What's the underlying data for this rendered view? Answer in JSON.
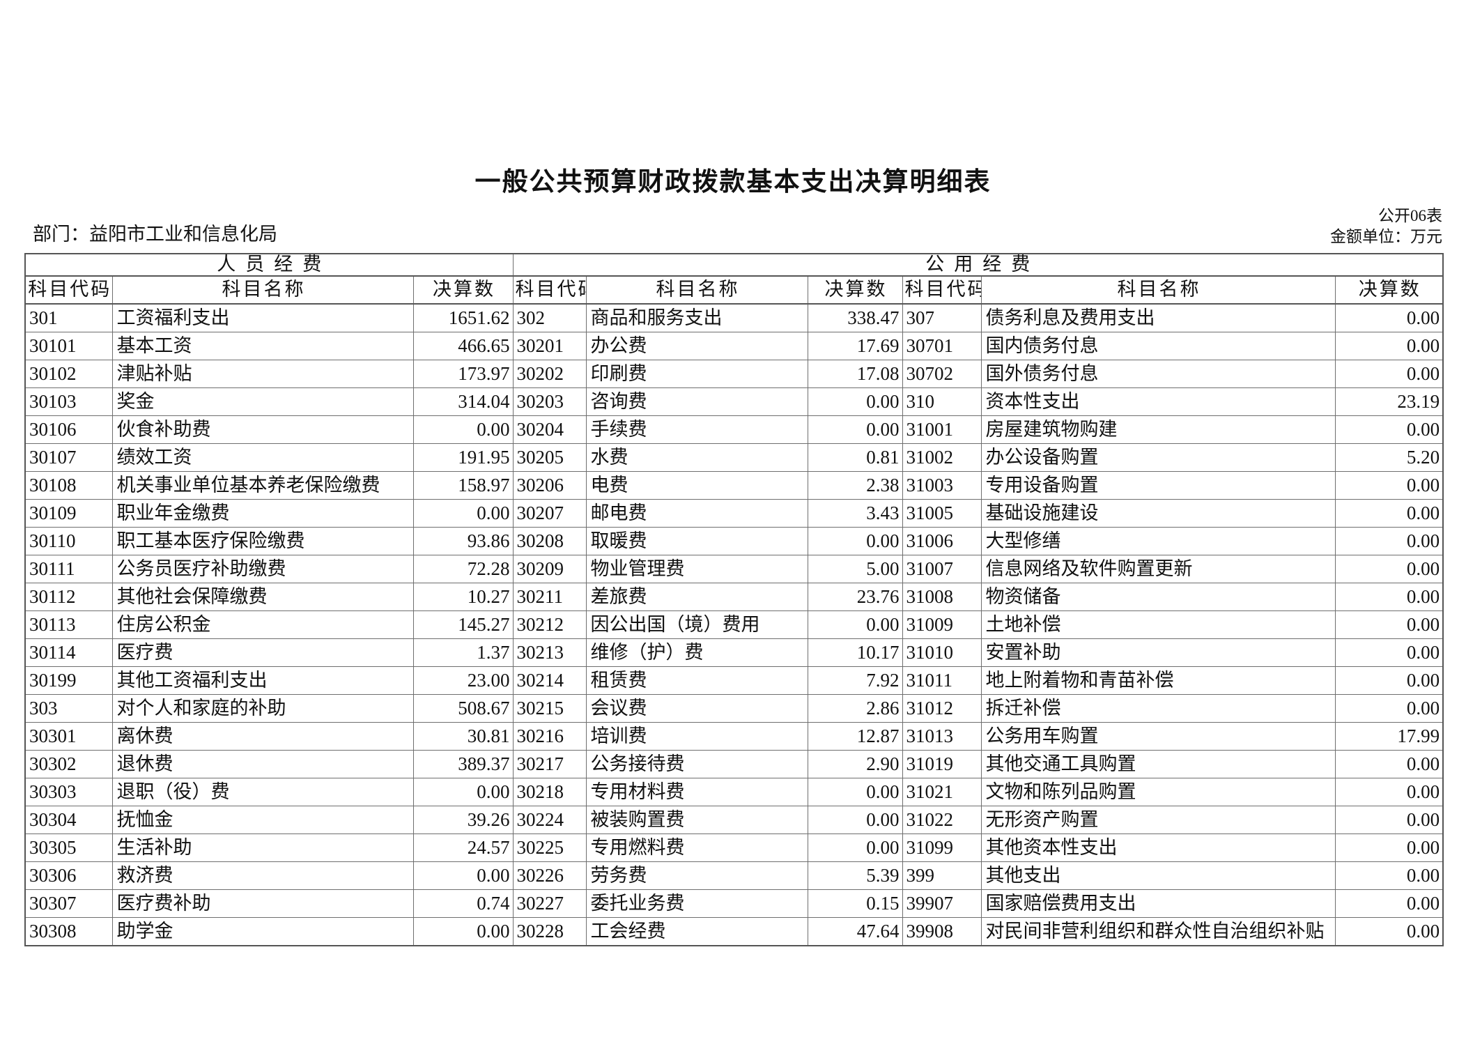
{
  "page": {
    "title": "一般公共预算财政拨款基本支出决算明细表",
    "sheet_label": "公开06表",
    "department_label": "部门：益阳市工业和信息化局",
    "unit_label": "金额单位：万元"
  },
  "table": {
    "group_headers": [
      "人员经费",
      "公用经费"
    ],
    "column_headers": [
      "科目代码",
      "科目名称",
      "决算数"
    ],
    "rows": [
      [
        [
          "301",
          "工资福利支出",
          "1651.62"
        ],
        [
          "302",
          "商品和服务支出",
          "338.47"
        ],
        [
          "307",
          "债务利息及费用支出",
          "0.00"
        ]
      ],
      [
        [
          "30101",
          "基本工资",
          "466.65"
        ],
        [
          "30201",
          "办公费",
          "17.69"
        ],
        [
          "30701",
          "国内债务付息",
          "0.00"
        ]
      ],
      [
        [
          "30102",
          "津贴补贴",
          "173.97"
        ],
        [
          "30202",
          "印刷费",
          "17.08"
        ],
        [
          "30702",
          "国外债务付息",
          "0.00"
        ]
      ],
      [
        [
          "30103",
          "奖金",
          "314.04"
        ],
        [
          "30203",
          "咨询费",
          "0.00"
        ],
        [
          "310",
          "资本性支出",
          "23.19"
        ]
      ],
      [
        [
          "30106",
          "伙食补助费",
          "0.00"
        ],
        [
          "30204",
          "手续费",
          "0.00"
        ],
        [
          "31001",
          "房屋建筑物购建",
          "0.00"
        ]
      ],
      [
        [
          "30107",
          "绩效工资",
          "191.95"
        ],
        [
          "30205",
          "水费",
          "0.81"
        ],
        [
          "31002",
          "办公设备购置",
          "5.20"
        ]
      ],
      [
        [
          "30108",
          "机关事业单位基本养老保险缴费",
          "158.97"
        ],
        [
          "30206",
          "电费",
          "2.38"
        ],
        [
          "31003",
          "专用设备购置",
          "0.00"
        ]
      ],
      [
        [
          "30109",
          "职业年金缴费",
          "0.00"
        ],
        [
          "30207",
          "邮电费",
          "3.43"
        ],
        [
          "31005",
          "基础设施建设",
          "0.00"
        ]
      ],
      [
        [
          "30110",
          "职工基本医疗保险缴费",
          "93.86"
        ],
        [
          "30208",
          "取暖费",
          "0.00"
        ],
        [
          "31006",
          "大型修缮",
          "0.00"
        ]
      ],
      [
        [
          "30111",
          "公务员医疗补助缴费",
          "72.28"
        ],
        [
          "30209",
          "物业管理费",
          "5.00"
        ],
        [
          "31007",
          "信息网络及软件购置更新",
          "0.00"
        ]
      ],
      [
        [
          "30112",
          "其他社会保障缴费",
          "10.27"
        ],
        [
          "30211",
          "差旅费",
          "23.76"
        ],
        [
          "31008",
          "物资储备",
          "0.00"
        ]
      ],
      [
        [
          "30113",
          "住房公积金",
          "145.27"
        ],
        [
          "30212",
          "因公出国（境）费用",
          "0.00"
        ],
        [
          "31009",
          "土地补偿",
          "0.00"
        ]
      ],
      [
        [
          "30114",
          "医疗费",
          "1.37"
        ],
        [
          "30213",
          "维修（护）费",
          "10.17"
        ],
        [
          "31010",
          "安置补助",
          "0.00"
        ]
      ],
      [
        [
          "30199",
          "其他工资福利支出",
          "23.00"
        ],
        [
          "30214",
          "租赁费",
          "7.92"
        ],
        [
          "31011",
          "地上附着物和青苗补偿",
          "0.00"
        ]
      ],
      [
        [
          "303",
          "对个人和家庭的补助",
          "508.67"
        ],
        [
          "30215",
          "会议费",
          "2.86"
        ],
        [
          "31012",
          "拆迁补偿",
          "0.00"
        ]
      ],
      [
        [
          "30301",
          "离休费",
          "30.81"
        ],
        [
          "30216",
          "培训费",
          "12.87"
        ],
        [
          "31013",
          "公务用车购置",
          "17.99"
        ]
      ],
      [
        [
          "30302",
          "退休费",
          "389.37"
        ],
        [
          "30217",
          "公务接待费",
          "2.90"
        ],
        [
          "31019",
          "其他交通工具购置",
          "0.00"
        ]
      ],
      [
        [
          "30303",
          "退职（役）费",
          "0.00"
        ],
        [
          "30218",
          "专用材料费",
          "0.00"
        ],
        [
          "31021",
          "文物和陈列品购置",
          "0.00"
        ]
      ],
      [
        [
          "30304",
          "抚恤金",
          "39.26"
        ],
        [
          "30224",
          "被装购置费",
          "0.00"
        ],
        [
          "31022",
          "无形资产购置",
          "0.00"
        ]
      ],
      [
        [
          "30305",
          "生活补助",
          "24.57"
        ],
        [
          "30225",
          "专用燃料费",
          "0.00"
        ],
        [
          "31099",
          "其他资本性支出",
          "0.00"
        ]
      ],
      [
        [
          "30306",
          "救济费",
          "0.00"
        ],
        [
          "30226",
          "劳务费",
          "5.39"
        ],
        [
          "399",
          "其他支出",
          "0.00"
        ]
      ],
      [
        [
          "30307",
          "医疗费补助",
          "0.74"
        ],
        [
          "30227",
          "委托业务费",
          "0.15"
        ],
        [
          "39907",
          "国家赔偿费用支出",
          "0.00"
        ]
      ],
      [
        [
          "30308",
          "助学金",
          "0.00"
        ],
        [
          "30228",
          "工会经费",
          "47.64"
        ],
        [
          "39908",
          "对民间非营利组织和群众性自治组织补贴",
          "0.00"
        ]
      ]
    ]
  }
}
